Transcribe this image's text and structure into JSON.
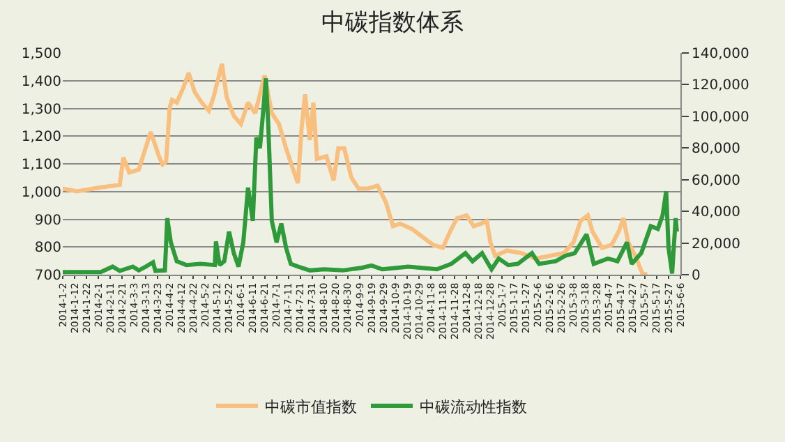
{
  "chart_data": {
    "type": "line",
    "title": "中碳指数体系",
    "xlim": [
      "2014-01-02",
      "2015-06-06"
    ],
    "xticks": [
      {
        "value": "2014-01-02",
        "label": "2014-1-2"
      },
      {
        "value": "2014-01-12",
        "label": "2014-1-12"
      },
      {
        "value": "2014-01-22",
        "label": "2014-1-22"
      },
      {
        "value": "2014-02-01",
        "label": "2014-2-1"
      },
      {
        "value": "2014-02-11",
        "label": "2014-2-11"
      },
      {
        "value": "2014-02-21",
        "label": "2014-2-21"
      },
      {
        "value": "2014-03-03",
        "label": "2014-3-3"
      },
      {
        "value": "2014-03-13",
        "label": "2014-3-13"
      },
      {
        "value": "2014-03-23",
        "label": "2014-3-23"
      },
      {
        "value": "2014-04-02",
        "label": "2014-4-2"
      },
      {
        "value": "2014-04-12",
        "label": "2014-4-12"
      },
      {
        "value": "2014-04-22",
        "label": "2014-4-22"
      },
      {
        "value": "2014-05-02",
        "label": "2014-5-2"
      },
      {
        "value": "2014-05-12",
        "label": "2014-5-12"
      },
      {
        "value": "2014-05-22",
        "label": "2014-5-22"
      },
      {
        "value": "2014-06-01",
        "label": "2014-6-1"
      },
      {
        "value": "2014-06-11",
        "label": "2014-6-11"
      },
      {
        "value": "2014-06-21",
        "label": "2014-6-21"
      },
      {
        "value": "2014-07-01",
        "label": "2014-7-1"
      },
      {
        "value": "2014-07-11",
        "label": "2014-7-11"
      },
      {
        "value": "2014-07-21",
        "label": "2014-7-21"
      },
      {
        "value": "2014-07-31",
        "label": "2014-7-31"
      },
      {
        "value": "2014-08-10",
        "label": "2014-8-10"
      },
      {
        "value": "2014-08-20",
        "label": "2014-8-20"
      },
      {
        "value": "2014-08-30",
        "label": "2014-8-30"
      },
      {
        "value": "2014-09-09",
        "label": "2014-9-9"
      },
      {
        "value": "2014-09-19",
        "label": "2014-9-19"
      },
      {
        "value": "2014-09-29",
        "label": "2014-9-29"
      },
      {
        "value": "2014-10-09",
        "label": "2014-10-9"
      },
      {
        "value": "2014-10-19",
        "label": "2014-10-19"
      },
      {
        "value": "2014-10-29",
        "label": "2014-10-29"
      },
      {
        "value": "2014-11-08",
        "label": "2014-11-8"
      },
      {
        "value": "2014-11-18",
        "label": "2014-11-18"
      },
      {
        "value": "2014-11-28",
        "label": "2014-11-28"
      },
      {
        "value": "2014-12-08",
        "label": "2014-12-8"
      },
      {
        "value": "2014-12-18",
        "label": "2014-12-18"
      },
      {
        "value": "2014-12-28",
        "label": "2014-12-28"
      },
      {
        "value": "2015-01-07",
        "label": "2015-1-7"
      },
      {
        "value": "2015-01-17",
        "label": "2015-1-17"
      },
      {
        "value": "2015-01-27",
        "label": "2015-1-27"
      },
      {
        "value": "2015-02-06",
        "label": "2015-2-6"
      },
      {
        "value": "2015-02-16",
        "label": "2015-2-16"
      },
      {
        "value": "2015-02-26",
        "label": "2015-2-26"
      },
      {
        "value": "2015-03-08",
        "label": "2015-3-8"
      },
      {
        "value": "2015-03-18",
        "label": "2015-3-18"
      },
      {
        "value": "2015-03-28",
        "label": "2015-3-28"
      },
      {
        "value": "2015-04-07",
        "label": "2015-4-7"
      },
      {
        "value": "2015-04-17",
        "label": "2015-4-17"
      },
      {
        "value": "2015-04-27",
        "label": "2015-4-27"
      },
      {
        "value": "2015-05-07",
        "label": "2015-5-7"
      },
      {
        "value": "2015-05-17",
        "label": "2015-5-17"
      },
      {
        "value": "2015-05-27",
        "label": "2015-5-27"
      },
      {
        "value": "2015-06-06",
        "label": "2015-6-6"
      }
    ],
    "ylim": [
      700,
      1500
    ],
    "yticks": [
      700,
      800,
      900,
      {
        "value": 1000,
        "label": "1,000"
      },
      {
        "value": 1100,
        "label": "1,100"
      },
      {
        "value": 1200,
        "label": "1,200"
      },
      {
        "value": 1300,
        "label": "1,300"
      },
      {
        "value": 1400,
        "label": "1,400"
      },
      {
        "value": 1500,
        "label": "1,500"
      }
    ],
    "y2lim": [
      0,
      140000
    ],
    "y2ticks": [
      0,
      {
        "value": 20000,
        "label": "20,000"
      },
      {
        "value": 40000,
        "label": "40,000"
      },
      {
        "value": 60000,
        "label": "60,000"
      },
      {
        "value": 80000,
        "label": "80,000"
      },
      {
        "value": 100000,
        "label": "100,000"
      },
      {
        "value": 120000,
        "label": "120,000"
      },
      {
        "value": 140000,
        "label": "140,000"
      }
    ],
    "grid": "y",
    "legend": "bottom",
    "marker": "none",
    "line_style": "solid",
    "series": [
      {
        "name": "中碳市值指数",
        "color": "#f9bf7f",
        "x": [
          "2014-01-02",
          "2014-01-14",
          "2014-02-03",
          "2014-02-19",
          "2014-02-22",
          "2014-02-27",
          "2014-03-07",
          "2014-03-17",
          "2014-03-21",
          "2014-03-24",
          "2014-03-27",
          "2014-03-30",
          "2014-04-02",
          "2014-04-04",
          "2014-04-08",
          "2014-04-14",
          "2014-04-18",
          "2014-04-23",
          "2014-04-29",
          "2014-05-05",
          "2014-05-09",
          "2014-05-16",
          "2014-05-20",
          "2014-05-26",
          "2014-06-01",
          "2014-06-07",
          "2014-06-13",
          "2014-06-21",
          "2014-06-27",
          "2014-07-03",
          "2014-07-09",
          "2014-07-15",
          "2014-07-19",
          "2014-07-22",
          "2014-07-25",
          "2014-07-29",
          "2014-08-01",
          "2014-08-04",
          "2014-08-12",
          "2014-08-18",
          "2014-08-22",
          "2014-08-27",
          "2014-09-02",
          "2014-09-08",
          "2014-09-16",
          "2014-09-24",
          "2014-10-01",
          "2014-10-07",
          "2014-10-13",
          "2014-10-23",
          "2014-11-04",
          "2014-11-10",
          "2014-11-18",
          "2014-11-24",
          "2014-11-30",
          "2014-12-08",
          "2014-12-14",
          "2014-12-20",
          "2014-12-25",
          "2014-12-28",
          "2015-01-01",
          "2015-01-11",
          "2015-01-23",
          "2015-02-04",
          "2015-02-16",
          "2015-02-28",
          "2015-03-08",
          "2015-03-14",
          "2015-03-20",
          "2015-03-24",
          "2015-04-01",
          "2015-04-09",
          "2015-04-15",
          "2015-04-19",
          "2015-04-23",
          "2015-04-29",
          "2015-05-05",
          "2015-05-09"
        ],
        "values": [
          1011,
          1001,
          1015,
          1024,
          1123,
          1069,
          1079,
          1215,
          1166,
          1127,
          1098,
          1108,
          1302,
          1331,
          1321,
          1380,
          1428,
          1360,
          1321,
          1292,
          1341,
          1461,
          1341,
          1273,
          1244,
          1321,
          1283,
          1419,
          1283,
          1244,
          1156,
          1079,
          1030,
          1224,
          1351,
          1186,
          1321,
          1118,
          1127,
          1040,
          1156,
          1156,
          1050,
          1011,
          1011,
          1021,
          962,
          875,
          884,
          865,
          826,
          807,
          797,
          855,
          904,
          914,
          875,
          884,
          894,
          817,
          768,
          787,
          778,
          758,
          768,
          778,
          817,
          894,
          914,
          855,
          797,
          807,
          855,
          904,
          817,
          768,
          704,
          700
        ]
      },
      {
        "name": "中碳流动性指数",
        "color": "#2e9a3a",
        "axis": "y2",
        "x": [
          "2014-01-02",
          "2014-02-03",
          "2014-02-13",
          "2014-02-19",
          "2014-03-02",
          "2014-03-07",
          "2014-03-13",
          "2014-03-19",
          "2014-03-21",
          "2014-03-29",
          "2014-03-31",
          "2014-04-03",
          "2014-04-08",
          "2014-04-16",
          "2014-04-28",
          "2014-05-10",
          "2014-05-11",
          "2014-05-14",
          "2014-05-18",
          "2014-05-22",
          "2014-05-26",
          "2014-05-30",
          "2014-06-03",
          "2014-06-07",
          "2014-06-11",
          "2014-06-14",
          "2014-06-17",
          "2014-06-20",
          "2014-06-22",
          "2014-06-24",
          "2014-06-27",
          "2014-07-01",
          "2014-07-05",
          "2014-07-09",
          "2014-07-13",
          "2014-07-19",
          "2014-07-29",
          "2014-08-10",
          "2014-08-26",
          "2014-09-11",
          "2014-09-19",
          "2014-09-28",
          "2014-10-20",
          "2014-11-13",
          "2014-11-25",
          "2014-12-07",
          "2014-12-13",
          "2014-12-21",
          "2014-12-29",
          "2015-01-04",
          "2015-01-12",
          "2015-01-20",
          "2015-02-01",
          "2015-02-07",
          "2015-02-21",
          "2015-03-01",
          "2015-03-09",
          "2015-03-19",
          "2015-03-25",
          "2015-04-06",
          "2015-04-14",
          "2015-04-22",
          "2015-04-26",
          "2015-05-04",
          "2015-05-12",
          "2015-05-18",
          "2015-05-22",
          "2015-05-25",
          "2015-05-27",
          "2015-05-30",
          "2015-06-02",
          "2015-06-03"
        ],
        "values": [
          1700,
          1700,
          5100,
          2400,
          5100,
          2700,
          5100,
          7800,
          2400,
          2700,
          35700,
          20400,
          8500,
          6100,
          6800,
          6100,
          21000,
          6100,
          8500,
          27200,
          13600,
          5100,
          20400,
          55000,
          34000,
          86600,
          79900,
          105300,
          124000,
          95100,
          34000,
          20400,
          32300,
          17000,
          6800,
          5100,
          2700,
          3400,
          2700,
          4400,
          5800,
          3400,
          5100,
          3400,
          6800,
          13600,
          8500,
          13600,
          3400,
          10200,
          6100,
          6800,
          13600,
          6800,
          8500,
          11900,
          13600,
          25500,
          6800,
          10200,
          8500,
          20400,
          6800,
          13600,
          30600,
          28900,
          37400,
          52700,
          17000,
          700,
          35700,
          27200
        ]
      }
    ]
  }
}
